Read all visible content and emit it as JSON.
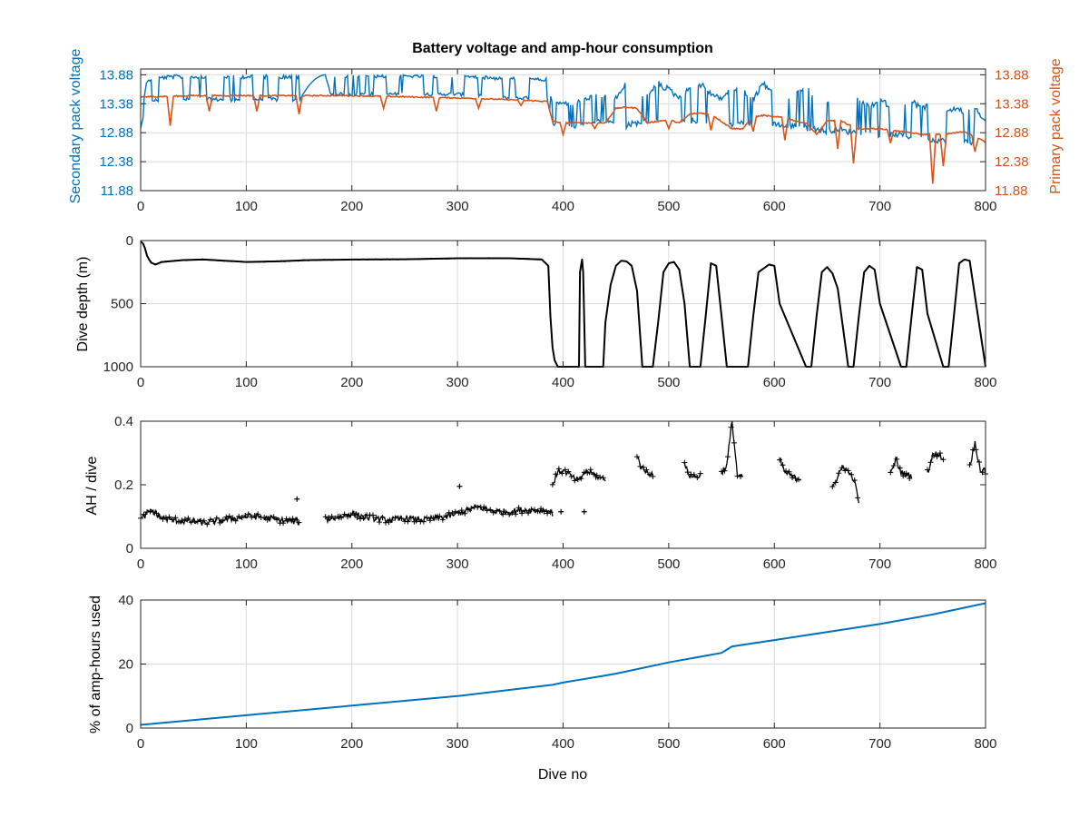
{
  "colors": {
    "blue": "#0072BD",
    "orange": "#D95319",
    "black": "#000000",
    "grid": "#dcdcdc",
    "axis": "#262626"
  },
  "chart_data": [
    {
      "type": "line",
      "title": "Battery voltage and amp-hour consumption",
      "xlabel": "",
      "ylabel_left": "Secondary pack voltage",
      "ylabel_right": "Primary pack voltage",
      "xlim": [
        0,
        800
      ],
      "ylim": [
        11.88,
        13.98
      ],
      "x_ticks": [
        "0",
        "100",
        "200",
        "300",
        "400",
        "500",
        "600",
        "700",
        "800"
      ],
      "y_ticks_left": [
        "11.88",
        "12.38",
        "12.88",
        "13.38",
        "13.88"
      ],
      "y_ticks_right": [
        "11.88",
        "12.38",
        "12.88",
        "13.38",
        "13.88"
      ],
      "grid": true,
      "series": [
        {
          "axis": "left",
          "color": "#0072BD",
          "style": "noisy-band",
          "x": [
            0,
            5,
            10,
            30,
            60,
            100,
            140,
            150,
            175,
            180,
            220,
            260,
            300,
            340,
            385,
            390,
            410,
            430,
            440,
            445,
            460,
            470,
            480,
            490,
            500,
            510,
            520,
            530,
            540,
            550,
            560,
            570,
            580,
            590,
            600,
            610,
            620,
            630,
            640,
            650,
            660,
            670,
            680,
            690,
            700,
            710,
            720,
            730,
            740,
            750,
            760,
            770,
            780,
            790,
            800
          ],
          "low": [
            12.95,
            13.3,
            13.4,
            13.42,
            13.42,
            13.42,
            13.42,
            13.42,
            13.85,
            13.52,
            13.52,
            13.52,
            13.52,
            13.45,
            13.45,
            13.0,
            12.95,
            13.05,
            13.05,
            13.05,
            12.95,
            13.0,
            13.05,
            13.0,
            12.95,
            13.0,
            13.05,
            12.95,
            13.0,
            13.05,
            12.98,
            13.0,
            12.95,
            12.9,
            13.0,
            12.95,
            12.95,
            12.9,
            12.9,
            12.85,
            12.9,
            12.85,
            12.85,
            12.8,
            12.78,
            12.8,
            12.8,
            12.75,
            12.72,
            12.7,
            12.7,
            12.65,
            12.7,
            12.62,
            12.78
          ],
          "high": [
            13.05,
            13.75,
            13.85,
            13.88,
            13.88,
            13.88,
            13.88,
            13.88,
            13.88,
            13.88,
            13.88,
            13.88,
            13.88,
            13.85,
            13.82,
            13.42,
            13.42,
            13.55,
            13.55,
            13.38,
            13.8,
            13.6,
            13.55,
            13.78,
            13.68,
            13.52,
            13.7,
            13.78,
            13.6,
            13.5,
            13.72,
            13.65,
            13.5,
            13.8,
            13.6,
            13.45,
            13.6,
            13.7,
            13.52,
            13.45,
            13.58,
            13.4,
            13.5,
            13.35,
            13.5,
            13.38,
            13.38,
            13.48,
            13.35,
            13.42,
            13.3,
            13.35,
            13.28,
            13.35,
            13.1
          ]
        },
        {
          "axis": "right",
          "color": "#D95319",
          "style": "line-with-spikes",
          "x": [
            0,
            10,
            50,
            100,
            150,
            200,
            250,
            300,
            350,
            385,
            390,
            400,
            420,
            440,
            450,
            460,
            470,
            480,
            490,
            500,
            510,
            520,
            530,
            540,
            560,
            570,
            580,
            590,
            600,
            610,
            620,
            630,
            640,
            650,
            660,
            680,
            690,
            700,
            720,
            740,
            760,
            780,
            800
          ],
          "y": [
            13.5,
            13.5,
            13.52,
            13.52,
            13.52,
            13.52,
            13.5,
            13.48,
            13.45,
            13.42,
            13.08,
            13.05,
            13.05,
            13.05,
            13.3,
            13.32,
            13.3,
            13.05,
            13.08,
            13.1,
            13.05,
            13.2,
            13.22,
            13.2,
            12.95,
            12.95,
            13.15,
            13.18,
            13.15,
            13.15,
            13.08,
            13.05,
            12.85,
            13.08,
            13.1,
            12.95,
            12.95,
            12.95,
            12.9,
            12.85,
            12.85,
            12.9,
            12.72
          ],
          "spikes": [
            [
              28,
              13.0
            ],
            [
              65,
              13.25
            ],
            [
              110,
              13.25
            ],
            [
              150,
              13.2
            ],
            [
              230,
              13.3
            ],
            [
              280,
              13.25
            ],
            [
              320,
              13.3
            ],
            [
              360,
              13.35
            ],
            [
              400,
              12.85
            ],
            [
              430,
              12.95
            ],
            [
              500,
              12.95
            ],
            [
              540,
              12.92
            ],
            [
              580,
              12.9
            ],
            [
              610,
              12.75
            ],
            [
              660,
              12.6
            ],
            [
              675,
              12.35
            ],
            [
              710,
              12.7
            ],
            [
              750,
              12.0
            ],
            [
              760,
              12.3
            ],
            [
              790,
              12.55
            ]
          ]
        }
      ]
    },
    {
      "type": "line",
      "title": "",
      "xlabel": "",
      "ylabel": "Dive depth (m)",
      "xlim": [
        0,
        800
      ],
      "ylim": [
        1000,
        0
      ],
      "reversed_y": true,
      "x_ticks": [
        "0",
        "100",
        "200",
        "300",
        "400",
        "500",
        "600",
        "700",
        "800"
      ],
      "y_ticks": [
        "0",
        "500",
        "1000"
      ],
      "grid": true,
      "series": [
        {
          "color": "#000000",
          "x": [
            0,
            2,
            4,
            6,
            8,
            10,
            14,
            20,
            40,
            60,
            80,
            100,
            130,
            160,
            200,
            250,
            300,
            350,
            380,
            386,
            388,
            390,
            392,
            395,
            400,
            415,
            416,
            418,
            419,
            421,
            422,
            438,
            440,
            445,
            450,
            455,
            460,
            465,
            470,
            475,
            480,
            485,
            490,
            495,
            500,
            505,
            510,
            515,
            520,
            530,
            535,
            540,
            545,
            550,
            555,
            560,
            575,
            580,
            585,
            595,
            600,
            605,
            630,
            635,
            640,
            645,
            650,
            655,
            660,
            670,
            675,
            680,
            685,
            690,
            695,
            700,
            720,
            725,
            730,
            735,
            740,
            745,
            760,
            765,
            770,
            775,
            780,
            785,
            800
          ],
          "y": [
            10,
            20,
            60,
            120,
            150,
            175,
            190,
            170,
            155,
            150,
            160,
            170,
            165,
            155,
            150,
            148,
            140,
            140,
            150,
            200,
            600,
            850,
            950,
            1000,
            1000,
            1000,
            250,
            150,
            250,
            1000,
            1000,
            1000,
            650,
            350,
            200,
            160,
            165,
            200,
            400,
            1000,
            1000,
            1000,
            650,
            250,
            180,
            170,
            230,
            500,
            1000,
            1000,
            600,
            180,
            200,
            600,
            1000,
            1000,
            1000,
            600,
            250,
            190,
            200,
            500,
            1000,
            1000,
            600,
            250,
            210,
            260,
            380,
            1000,
            1000,
            600,
            250,
            200,
            230,
            500,
            1000,
            1000,
            600,
            210,
            230,
            580,
            1000,
            1000,
            600,
            180,
            150,
            160,
            1000
          ]
        }
      ]
    },
    {
      "type": "scatter",
      "title": "",
      "xlabel": "",
      "ylabel": "AH / dive",
      "xlim": [
        0,
        800
      ],
      "ylim": [
        0,
        0.4
      ],
      "x_ticks": [
        "0",
        "100",
        "200",
        "300",
        "400",
        "500",
        "600",
        "700",
        "800"
      ],
      "y_ticks": [
        "0",
        "0.2",
        "0.4"
      ],
      "grid": false,
      "series": [
        {
          "color": "#000000",
          "marker": "+",
          "segments": [
            {
              "x": [
                0,
                10,
                20,
                30,
                40,
                50,
                60,
                70,
                80,
                90,
                100,
                110,
                120,
                130,
                140,
                150
              ],
              "y": [
                0.09,
                0.12,
                0.095,
                0.09,
                0.085,
                0.085,
                0.08,
                0.085,
                0.09,
                0.095,
                0.1,
                0.1,
                0.095,
                0.09,
                0.085,
                0.085
              ]
            },
            {
              "x": [
                175,
                180,
                190,
                200,
                210,
                220,
                230,
                240,
                250,
                260,
                270,
                280,
                290,
                300,
                310,
                320,
                330,
                340,
                350,
                360,
                370,
                380,
                385,
                390
              ],
              "y": [
                0.09,
                0.095,
                0.1,
                0.11,
                0.1,
                0.095,
                0.09,
                0.09,
                0.095,
                0.09,
                0.09,
                0.095,
                0.1,
                0.11,
                0.12,
                0.13,
                0.12,
                0.115,
                0.115,
                0.12,
                0.12,
                0.12,
                0.12,
                0.11
              ]
            },
            {
              "x": [
                390,
                395,
                400,
                405,
                410,
                415,
                420,
                425,
                430,
                435,
                440
              ],
              "y": [
                0.2,
                0.24,
                0.245,
                0.235,
                0.22,
                0.21,
                0.24,
                0.24,
                0.23,
                0.22,
                0.22
              ]
            },
            {
              "x": [
                470,
                475,
                480,
                485
              ],
              "y": [
                0.29,
                0.25,
                0.24,
                0.235
              ]
            },
            {
              "x": [
                515,
                520,
                525,
                530
              ],
              "y": [
                0.26,
                0.23,
                0.225,
                0.23
              ]
            },
            {
              "x": [
                550,
                555,
                560,
                565,
                570
              ],
              "y": [
                0.24,
                0.26,
                0.4,
                0.23,
                0.22
              ]
            },
            {
              "x": [
                605,
                610,
                615,
                620,
                625
              ],
              "y": [
                0.28,
                0.24,
                0.23,
                0.22,
                0.22
              ]
            },
            {
              "x": [
                655,
                660,
                665,
                670,
                675,
                680
              ],
              "y": [
                0.2,
                0.22,
                0.26,
                0.24,
                0.22,
                0.15
              ]
            },
            {
              "x": [
                710,
                715,
                720,
                725,
                730
              ],
              "y": [
                0.23,
                0.28,
                0.24,
                0.23,
                0.23
              ]
            },
            {
              "x": [
                745,
                750,
                755,
                760
              ],
              "y": [
                0.24,
                0.29,
                0.3,
                0.28
              ]
            },
            {
              "x": [
                785,
                790,
                795,
                800
              ],
              "y": [
                0.26,
                0.33,
                0.25,
                0.24
              ]
            }
          ],
          "outliers": [
            [
              148,
              0.155
            ],
            [
              302,
              0.195
            ],
            [
              420,
              0.115
            ],
            [
              398,
              0.115
            ]
          ]
        }
      ]
    },
    {
      "type": "line",
      "title": "",
      "xlabel": "Dive no",
      "ylabel": "% of amp-hours used",
      "xlim": [
        0,
        800
      ],
      "ylim": [
        0,
        40
      ],
      "x_ticks": [
        "0",
        "100",
        "200",
        "300",
        "400",
        "500",
        "600",
        "700",
        "800"
      ],
      "y_ticks": [
        "0",
        "20",
        "40"
      ],
      "grid": true,
      "series": [
        {
          "color": "#0072BD",
          "x": [
            0,
            100,
            200,
            300,
            390,
            400,
            450,
            500,
            550,
            560,
            600,
            650,
            700,
            750,
            800
          ],
          "y": [
            1,
            4,
            7,
            10,
            13.5,
            14.2,
            17,
            20.5,
            23.5,
            25.5,
            27.5,
            30,
            32.5,
            35.5,
            39
          ]
        }
      ]
    }
  ]
}
